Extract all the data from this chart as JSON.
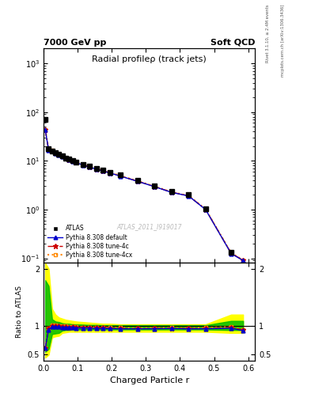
{
  "title_left": "7000 GeV pp",
  "title_right": "Soft QCD",
  "plot_title": "Radial profileρ (track jets)",
  "xlabel": "Charged Particle r",
  "ylabel_ratio": "Ratio to ATLAS",
  "right_label_top": "Rivet 3.1.10, ≥ 2.4M events",
  "right_label_bottom": "mcplots.cern.ch [arXiv:1306.3436]",
  "watermark": "ATLAS_2011_I919017",
  "x_data": [
    0.005,
    0.015,
    0.025,
    0.035,
    0.045,
    0.055,
    0.065,
    0.075,
    0.085,
    0.095,
    0.115,
    0.135,
    0.155,
    0.175,
    0.195,
    0.225,
    0.275,
    0.325,
    0.375,
    0.425,
    0.475,
    0.55,
    0.585
  ],
  "data_atlas": [
    70.0,
    17.5,
    16.0,
    14.5,
    13.5,
    12.5,
    11.5,
    10.8,
    10.1,
    9.5,
    8.5,
    7.7,
    7.0,
    6.4,
    5.85,
    5.1,
    4.0,
    3.1,
    2.35,
    2.0,
    1.05,
    0.13,
    null
  ],
  "data_pythia_default": [
    43.0,
    16.5,
    15.8,
    14.3,
    13.3,
    12.2,
    11.3,
    10.5,
    9.9,
    9.2,
    8.2,
    7.4,
    6.7,
    6.15,
    5.6,
    4.85,
    3.8,
    2.95,
    2.25,
    1.9,
    1.0,
    0.125,
    0.09
  ],
  "data_tune4c": [
    43.0,
    16.8,
    16.1,
    14.6,
    13.5,
    12.4,
    11.4,
    10.6,
    10.0,
    9.3,
    8.3,
    7.5,
    6.8,
    6.2,
    5.65,
    4.9,
    3.82,
    2.97,
    2.27,
    1.92,
    1.01,
    0.127,
    0.091
  ],
  "data_tune4cx": [
    43.5,
    16.9,
    16.2,
    14.7,
    13.6,
    12.5,
    11.5,
    10.7,
    10.05,
    9.35,
    8.35,
    7.55,
    6.85,
    6.25,
    5.7,
    4.95,
    3.85,
    3.0,
    2.28,
    1.93,
    1.02,
    0.128,
    0.092
  ],
  "ratio_default": [
    0.62,
    0.94,
    0.99,
    0.99,
    0.985,
    0.978,
    0.978,
    0.972,
    0.98,
    0.968,
    0.965,
    0.965,
    0.957,
    0.961,
    0.957,
    0.951,
    0.951,
    0.952,
    0.957,
    0.95,
    0.952,
    0.962,
    0.92
  ],
  "ratio_tune4c": [
    0.614,
    0.96,
    1.006,
    1.007,
    1.0,
    0.992,
    0.991,
    0.981,
    0.99,
    0.979,
    0.976,
    0.974,
    0.971,
    0.969,
    0.966,
    0.961,
    0.956,
    0.958,
    0.966,
    0.958,
    0.962,
    0.977,
    0.93
  ],
  "ratio_tune4cx": [
    0.621,
    0.966,
    1.013,
    1.014,
    1.007,
    1.0,
    1.0,
    0.991,
    0.995,
    0.984,
    0.982,
    0.981,
    0.979,
    0.977,
    0.975,
    0.971,
    0.963,
    0.968,
    0.97,
    0.965,
    0.971,
    0.985,
    0.935
  ],
  "color_atlas": "#000000",
  "color_default": "#0000cc",
  "color_tune4c": "#cc0000",
  "color_tune4cx": "#ff8800",
  "band_yellow": "#ffff00",
  "band_green": "#00bb00",
  "ylim_main": [
    0.08,
    2000
  ],
  "ylim_ratio": [
    0.4,
    2.1
  ],
  "xlim": [
    0.0,
    0.62
  ],
  "ratio_yticks": [
    0.5,
    1.0,
    2.0
  ],
  "ratio_yticklabels": [
    "0.5",
    "1",
    "2"
  ]
}
